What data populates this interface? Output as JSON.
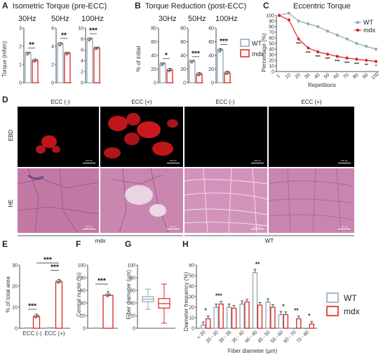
{
  "colors": {
    "wt": "#8fa9b8",
    "mdx": "#d9241f",
    "dots": "#8a8a8a",
    "he_bg": "#c77aa8",
    "ebd_red": "#c0161a"
  },
  "legend": {
    "wt": "WT",
    "mdx": "mdx"
  },
  "panelA": {
    "letter": "A",
    "title": "Isometric Torque (pre-ECC)",
    "ylabel": "Torque (mNm)",
    "subplots": [
      {
        "label": "30Hz",
        "ylim": [
          0,
          3
        ],
        "yticks": [
          "0",
          "1",
          "2",
          "3"
        ],
        "values": [
          1.6,
          1.2
        ],
        "err": [
          0.08,
          0.1
        ],
        "sig": "**"
      },
      {
        "label": "50Hz",
        "ylim": [
          0,
          6
        ],
        "yticks": [
          "0",
          "2",
          "4",
          "6"
        ],
        "values": [
          4.2,
          3.2
        ],
        "err": [
          0.2,
          0.15
        ],
        "sig": "**"
      },
      {
        "label": "100Hz",
        "ylim": [
          0,
          10
        ],
        "yticks": [
          "0",
          "2",
          "4",
          "6",
          "8",
          "10"
        ],
        "values": [
          7.9,
          6.3
        ],
        "err": [
          0.3,
          0.2
        ],
        "sig": "***"
      }
    ]
  },
  "panelB": {
    "letter": "B",
    "title": "Torque Reduction (post-ECC)",
    "ylabel": "% of initial",
    "subplots": [
      {
        "label": "30Hz",
        "ylim": [
          0,
          80
        ],
        "yticks": [
          "0",
          "20",
          "40",
          "60",
          "80"
        ],
        "values": [
          27,
          18
        ],
        "err": [
          2,
          3
        ],
        "sig": "*"
      },
      {
        "label": "50Hz",
        "ylim": [
          0,
          80
        ],
        "yticks": [
          "0",
          "20",
          "40",
          "60",
          "80"
        ],
        "values": [
          31,
          12
        ],
        "err": [
          1,
          3
        ],
        "sig": "***"
      },
      {
        "label": "100Hz",
        "ylim": [
          0,
          80
        ],
        "yticks": [
          "0",
          "20",
          "40",
          "60",
          "80"
        ],
        "values": [
          47,
          14
        ],
        "err": [
          3,
          3
        ],
        "sig": "***"
      }
    ]
  },
  "panelC": {
    "letter": "C",
    "title": "Eccentric Torque",
    "ylabel": "Percentage (%)",
    "xlabel": "Repetitions",
    "ylim": [
      0,
      100
    ],
    "yticks": [
      "0",
      "10",
      "20",
      "30",
      "40",
      "50",
      "60",
      "70",
      "80",
      "90",
      "100"
    ],
    "x": [
      "1",
      "10",
      "20",
      "30",
      "40",
      "50",
      "60",
      "70",
      "80",
      "90",
      "100"
    ],
    "series": [
      {
        "name": "WT",
        "values": [
          100,
          104,
          90,
          85,
          80,
          72,
          65,
          58,
          50,
          45,
          40
        ]
      },
      {
        "name": "mdx",
        "values": [
          100,
          92,
          58,
          42,
          35,
          31,
          27,
          24,
          22,
          20,
          18
        ]
      }
    ],
    "sig": [
      "",
      "",
      "***",
      "***",
      "***",
      "***",
      "***",
      "***",
      "***",
      "**",
      "*"
    ]
  },
  "panelD": {
    "letter": "D",
    "col_labels": [
      "ECC (-)",
      "ECC (+)",
      "ECC (-)",
      "ECC (+)"
    ],
    "row_labels": [
      "EBD",
      "HE"
    ],
    "group_labels": [
      "mdx",
      "WT"
    ],
    "scale_bar": "100 µm"
  },
  "panelE": {
    "letter": "E",
    "ylabel": "% of total area",
    "ylim": [
      0,
      30
    ],
    "yticks": [
      "0",
      "10",
      "20",
      "30"
    ],
    "categories": [
      "ECC (-)",
      "ECC (+)"
    ],
    "wt": [
      0.2,
      0.3
    ],
    "mdx": [
      5.5,
      22
    ],
    "sig": [
      "***",
      "***",
      "***"
    ]
  },
  "panelF": {
    "letter": "F",
    "ylabel": "Central nuclei (%)",
    "ylim": [
      0,
      100
    ],
    "yticks": [
      "0",
      "20",
      "40",
      "60",
      "80",
      "100"
    ],
    "wt": 0.5,
    "mdx": 52,
    "sig": "***"
  },
  "panelG": {
    "letter": "G",
    "ylabel": "Fiber diameter (µm)",
    "ylim": [
      0,
      100
    ],
    "yticks": [
      "0",
      "20",
      "40",
      "60",
      "80",
      "100"
    ],
    "wt_box": {
      "min": 30,
      "q1": 42,
      "median": 46,
      "q3": 50,
      "max": 62
    },
    "mdx_box": {
      "min": 8,
      "q1": 32,
      "median": 39,
      "q3": 47,
      "max": 70
    }
  },
  "panelH": {
    "letter": "H",
    "ylabel": "Diameter frequency (%)",
    "xlabel": "Fiber diameter (µm)",
    "ylim": [
      0,
      60
    ],
    "yticks": [
      "0",
      "10",
      "20",
      "30",
      "40",
      "50",
      "60"
    ],
    "categories": [
      "< 20",
      "20 - 30",
      "30 - 35",
      "35 - 40",
      "40 - 45",
      "45 - 50",
      "50 - 60",
      "60 - 70",
      "70 - 80"
    ],
    "wt": [
      3,
      20,
      20,
      23,
      53,
      25,
      13,
      0,
      0
    ],
    "mdx": [
      9,
      23,
      19,
      25,
      22,
      20,
      13,
      9,
      4
    ],
    "sig": [
      "*",
      "***",
      "",
      "",
      "**",
      "",
      "*",
      "**",
      "*"
    ]
  }
}
